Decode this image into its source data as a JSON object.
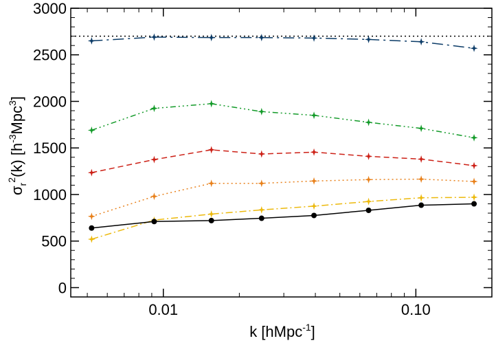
{
  "chart_data": {
    "type": "line",
    "x_scale": "log",
    "xlim": [
      0.0043,
      0.2
    ],
    "ylim": [
      -100,
      3000
    ],
    "grid": false,
    "legend": "none",
    "xlabel": {
      "main": "k [hMpc",
      "sup": "-1",
      "end": "]"
    },
    "ylabel": {
      "sigma": "σ",
      "sub": "r",
      "sup2": "2",
      "mid": "(k) [h",
      "sup3a": "-3",
      "mpc": "Mpc",
      "sup3b": "3",
      "end": "]"
    },
    "x_ticks": [
      {
        "value": 0.01,
        "label": "0.01"
      },
      {
        "value": 0.1,
        "label": "0.10"
      }
    ],
    "y_ticks": [
      {
        "value": 0,
        "label": "0"
      },
      {
        "value": 500,
        "label": "500"
      },
      {
        "value": 1000,
        "label": "1000"
      },
      {
        "value": 1500,
        "label": "1500"
      },
      {
        "value": 2000,
        "label": "2000"
      },
      {
        "value": 2500,
        "label": "2500"
      },
      {
        "value": 3000,
        "label": "3000"
      }
    ],
    "x": [
      0.0052,
      0.0092,
      0.0155,
      0.0245,
      0.0395,
      0.065,
      0.105,
      0.17
    ],
    "reference_line": {
      "y": 2700,
      "style": "dotted",
      "color": "#000000"
    },
    "series": [
      {
        "color": "#0a3a66",
        "dash": "16,6,3,6",
        "marker": "star",
        "values": [
          2650,
          2690,
          2685,
          2685,
          2680,
          2665,
          2640,
          2570
        ]
      },
      {
        "color": "#129a28",
        "dash": "8,4,2,4,2,4,2,4",
        "marker": "star",
        "values": [
          1690,
          1925,
          1975,
          1890,
          1850,
          1775,
          1710,
          1610
        ]
      },
      {
        "color": "#cc2016",
        "dash": "8,5",
        "marker": "star",
        "values": [
          1235,
          1375,
          1480,
          1435,
          1455,
          1410,
          1380,
          1310
        ]
      },
      {
        "color": "#e8801a",
        "dash": "2,4",
        "marker": "star",
        "values": [
          765,
          980,
          1120,
          1120,
          1145,
          1160,
          1165,
          1140
        ]
      },
      {
        "color": "#ecb90c",
        "dash": "10,4,2,4",
        "marker": "star",
        "values": [
          520,
          725,
          790,
          835,
          875,
          925,
          965,
          970
        ]
      },
      {
        "color": "#000000",
        "dash": "",
        "marker": "circle",
        "values": [
          640,
          710,
          720,
          745,
          775,
          830,
          885,
          900
        ]
      }
    ]
  }
}
